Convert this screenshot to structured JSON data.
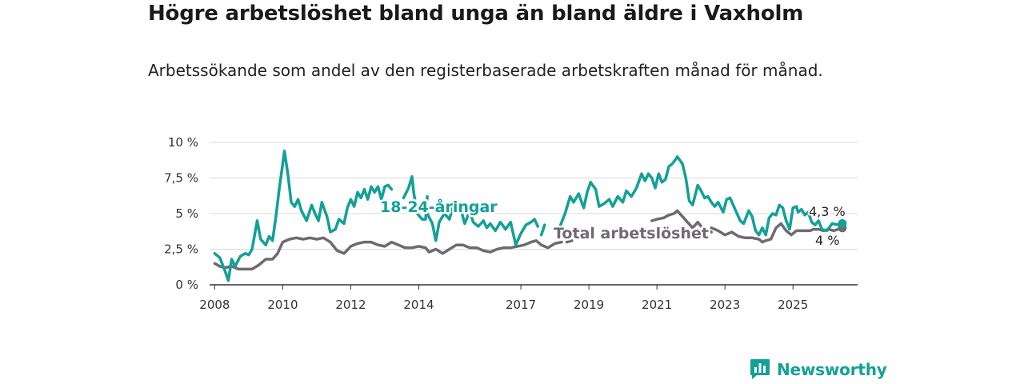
{
  "title": "Högre arbetslöshet bland unga än bland äldre i Vaxholm",
  "subtitle": "Arbetssökande som andel av den registerbaserade arbetskraften månad för månad.",
  "brand": {
    "name": "Newsworthy",
    "logo_icon": "bar-chart-speech-bubble-icon",
    "color": "#13a098"
  },
  "chart_data": {
    "type": "line",
    "ylim": [
      0,
      10
    ],
    "yticks": [
      0,
      2.5,
      5,
      7.5,
      10
    ],
    "ytick_labels": [
      "0 %",
      "2,5 %",
      "5 %",
      "7,5 %",
      "10 %"
    ],
    "xlim": [
      2007.85,
      2026.9
    ],
    "xticks": [
      2008,
      2010,
      2012,
      2014,
      2017,
      2019,
      2021,
      2023,
      2025
    ],
    "xtick_labels": [
      "2008",
      "2010",
      "2012",
      "2014",
      "2017",
      "2019",
      "2021",
      "2023",
      "2025"
    ],
    "grid": true,
    "series": [
      {
        "name": "18-24-åringar",
        "color": "#13a098",
        "end_label": "4,3 %",
        "points": [
          [
            2008.0,
            2.2
          ],
          [
            2008.15,
            1.9
          ],
          [
            2008.3,
            1.0
          ],
          [
            2008.4,
            0.3
          ],
          [
            2008.5,
            1.8
          ],
          [
            2008.6,
            1.3
          ],
          [
            2008.75,
            2.0
          ],
          [
            2008.9,
            2.2
          ],
          [
            2009.0,
            2.1
          ],
          [
            2009.1,
            2.5
          ],
          [
            2009.25,
            4.5
          ],
          [
            2009.35,
            3.2
          ],
          [
            2009.5,
            2.8
          ],
          [
            2009.6,
            3.4
          ],
          [
            2009.7,
            3.1
          ],
          [
            2009.8,
            4.8
          ],
          [
            2009.9,
            6.8
          ],
          [
            2010.0,
            8.5
          ],
          [
            2010.05,
            9.4
          ],
          [
            2010.15,
            7.8
          ],
          [
            2010.25,
            5.8
          ],
          [
            2010.35,
            5.5
          ],
          [
            2010.45,
            6.0
          ],
          [
            2010.55,
            5.2
          ],
          [
            2010.7,
            4.5
          ],
          [
            2010.85,
            5.6
          ],
          [
            2010.95,
            5.0
          ],
          [
            2011.05,
            4.5
          ],
          [
            2011.15,
            5.8
          ],
          [
            2011.3,
            4.8
          ],
          [
            2011.4,
            3.7
          ],
          [
            2011.55,
            3.9
          ],
          [
            2011.65,
            4.6
          ],
          [
            2011.8,
            4.3
          ],
          [
            2011.9,
            5.4
          ],
          [
            2012.0,
            6.0
          ],
          [
            2012.1,
            5.5
          ],
          [
            2012.2,
            6.5
          ],
          [
            2012.3,
            6.1
          ],
          [
            2012.4,
            6.7
          ],
          [
            2012.5,
            6.0
          ],
          [
            2012.6,
            6.9
          ],
          [
            2012.7,
            6.5
          ],
          [
            2012.8,
            6.9
          ],
          [
            2012.9,
            6.0
          ],
          [
            2013.0,
            6.9
          ],
          [
            2013.1,
            7.0
          ],
          [
            2013.2,
            6.7
          ]
        ],
        "points_2": [
          [
            2013.55,
            6.1
          ],
          [
            2013.7,
            6.8
          ],
          [
            2013.8,
            7.6
          ],
          [
            2013.85,
            6.5
          ],
          [
            2013.95,
            5.0
          ],
          [
            2014.1,
            4.6
          ],
          [
            2014.2,
            4.6
          ],
          [
            2014.25,
            6.2
          ]
        ],
        "points_3": [
          [
            2014.25,
            5.0
          ],
          [
            2014.4,
            4.3
          ],
          [
            2014.5,
            3.1
          ],
          [
            2014.6,
            4.4
          ],
          [
            2014.75,
            5.0
          ],
          [
            2014.9,
            4.6
          ],
          [
            2015.0,
            5.5
          ],
          [
            2015.1,
            5.2
          ],
          [
            2015.2,
            5.6
          ],
          [
            2015.35,
            4.3
          ],
          [
            2015.5,
            5.2
          ],
          [
            2015.6,
            4.4
          ],
          [
            2015.75,
            4.1
          ],
          [
            2015.9,
            4.5
          ],
          [
            2016.0,
            4.0
          ],
          [
            2016.1,
            4.3
          ],
          [
            2016.25,
            3.8
          ],
          [
            2016.4,
            4.4
          ],
          [
            2016.55,
            3.9
          ],
          [
            2016.7,
            4.4
          ],
          [
            2016.85,
            2.8
          ],
          [
            2017.0,
            3.6
          ],
          [
            2017.15,
            4.2
          ],
          [
            2017.3,
            4.4
          ],
          [
            2017.4,
            4.6
          ],
          [
            2017.5,
            4.1
          ]
        ],
        "points_4": [
          [
            2017.6,
            3.5
          ],
          [
            2017.7,
            4.2
          ]
        ],
        "points_5": [
          [
            2018.15,
            4.1
          ],
          [
            2018.3,
            5.0
          ],
          [
            2018.45,
            6.2
          ],
          [
            2018.55,
            5.8
          ],
          [
            2018.7,
            6.4
          ],
          [
            2018.85,
            5.4
          ],
          [
            2018.95,
            6.5
          ],
          [
            2019.05,
            7.2
          ],
          [
            2019.2,
            6.7
          ],
          [
            2019.3,
            5.5
          ],
          [
            2019.45,
            5.7
          ],
          [
            2019.6,
            6.0
          ],
          [
            2019.7,
            5.5
          ],
          [
            2019.85,
            6.2
          ],
          [
            2020.0,
            5.8
          ],
          [
            2020.1,
            6.6
          ],
          [
            2020.25,
            6.2
          ],
          [
            2020.4,
            6.8
          ],
          [
            2020.55,
            7.8
          ],
          [
            2020.65,
            7.3
          ],
          [
            2020.75,
            7.8
          ],
          [
            2020.85,
            7.5
          ],
          [
            2020.95,
            6.8
          ],
          [
            2021.05,
            7.8
          ],
          [
            2021.15,
            7.2
          ],
          [
            2021.25,
            7.4
          ],
          [
            2021.35,
            8.3
          ],
          [
            2021.45,
            8.5
          ],
          [
            2021.55,
            8.8
          ],
          [
            2021.6,
            9.0
          ],
          [
            2021.75,
            8.5
          ],
          [
            2021.85,
            7.5
          ],
          [
            2021.95,
            5.9
          ],
          [
            2022.05,
            5.6
          ],
          [
            2022.2,
            7.0
          ],
          [
            2022.3,
            6.6
          ],
          [
            2022.4,
            6.1
          ],
          [
            2022.5,
            6.2
          ],
          [
            2022.6,
            5.8
          ],
          [
            2022.7,
            5.5
          ],
          [
            2022.8,
            5.8
          ],
          [
            2022.95,
            5.1
          ],
          [
            2023.05,
            6.0
          ],
          [
            2023.15,
            6.1
          ],
          [
            2023.3,
            5.3
          ],
          [
            2023.45,
            4.5
          ],
          [
            2023.55,
            4.3
          ],
          [
            2023.7,
            5.2
          ],
          [
            2023.8,
            4.8
          ],
          [
            2023.9,
            3.8
          ],
          [
            2024.0,
            3.5
          ],
          [
            2024.1,
            4.0
          ],
          [
            2024.2,
            3.5
          ],
          [
            2024.3,
            4.7
          ],
          [
            2024.4,
            5.0
          ],
          [
            2024.5,
            4.9
          ],
          [
            2024.6,
            5.6
          ],
          [
            2024.7,
            5.4
          ],
          [
            2024.8,
            4.5
          ],
          [
            2024.9,
            3.9
          ],
          [
            2025.0,
            5.4
          ],
          [
            2025.1,
            5.5
          ],
          [
            2025.15,
            5.1
          ],
          [
            2025.25,
            5.3
          ],
          [
            2025.35,
            4.9
          ],
          [
            2025.45,
            5.1
          ],
          [
            2025.55,
            4.4
          ],
          [
            2025.65,
            4.2
          ],
          [
            2025.75,
            4.5
          ],
          [
            2025.85,
            3.9
          ],
          [
            2026.0,
            3.8
          ],
          [
            2026.15,
            4.3
          ],
          [
            2026.35,
            4.2
          ],
          [
            2026.45,
            4.3
          ]
        ]
      },
      {
        "name": "Total arbetslöshet",
        "color": "#6e6a70",
        "end_label": "4 %",
        "points": [
          [
            2008.0,
            1.5
          ],
          [
            2008.15,
            1.3
          ],
          [
            2008.3,
            1.2
          ],
          [
            2008.5,
            1.3
          ],
          [
            2008.7,
            1.1
          ],
          [
            2008.9,
            1.1
          ],
          [
            2009.1,
            1.1
          ],
          [
            2009.3,
            1.4
          ],
          [
            2009.5,
            1.8
          ],
          [
            2009.7,
            1.8
          ],
          [
            2009.85,
            2.2
          ],
          [
            2010.0,
            3.0
          ],
          [
            2010.2,
            3.2
          ],
          [
            2010.4,
            3.3
          ],
          [
            2010.6,
            3.2
          ],
          [
            2010.8,
            3.3
          ],
          [
            2011.0,
            3.2
          ],
          [
            2011.2,
            3.3
          ],
          [
            2011.4,
            3.0
          ],
          [
            2011.6,
            2.4
          ],
          [
            2011.8,
            2.2
          ],
          [
            2012.0,
            2.7
          ],
          [
            2012.2,
            2.9
          ],
          [
            2012.4,
            3.0
          ],
          [
            2012.6,
            3.0
          ],
          [
            2012.8,
            2.8
          ],
          [
            2013.0,
            2.7
          ],
          [
            2013.2,
            3.0
          ],
          [
            2013.4,
            2.8
          ],
          [
            2013.6,
            2.6
          ],
          [
            2013.8,
            2.6
          ],
          [
            2014.0,
            2.7
          ],
          [
            2014.2,
            2.6
          ],
          [
            2014.3,
            2.3
          ],
          [
            2014.5,
            2.5
          ],
          [
            2014.7,
            2.2
          ],
          [
            2014.9,
            2.5
          ],
          [
            2015.1,
            2.8
          ],
          [
            2015.3,
            2.8
          ],
          [
            2015.5,
            2.6
          ],
          [
            2015.7,
            2.6
          ],
          [
            2015.9,
            2.4
          ],
          [
            2016.1,
            2.3
          ],
          [
            2016.3,
            2.5
          ],
          [
            2016.5,
            2.6
          ],
          [
            2016.7,
            2.6
          ],
          [
            2016.9,
            2.7
          ],
          [
            2017.1,
            2.8
          ],
          [
            2017.3,
            3.0
          ],
          [
            2017.45,
            3.1
          ],
          [
            2017.6,
            2.8
          ],
          [
            2017.8,
            2.6
          ],
          [
            2018.0,
            2.9
          ],
          [
            2018.2,
            3.0
          ]
        ],
        "points_2": [
          [
            2018.35,
            3.0
          ],
          [
            2018.5,
            3.1
          ]
        ],
        "points_3": [
          [
            2020.85,
            4.5
          ],
          [
            2021.0,
            4.6
          ],
          [
            2021.2,
            4.7
          ],
          [
            2021.35,
            4.9
          ],
          [
            2021.5,
            5.0
          ],
          [
            2021.6,
            5.2
          ],
          [
            2021.75,
            4.8
          ],
          [
            2021.9,
            4.4
          ],
          [
            2022.05,
            4.0
          ],
          [
            2022.2,
            4.4
          ],
          [
            2022.3,
            4.1
          ],
          [
            2022.45,
            3.9
          ],
          [
            2022.6,
            3.7
          ]
        ],
        "points_4": [
          [
            2022.6,
            4.0
          ],
          [
            2022.8,
            3.8
          ],
          [
            2023.0,
            3.5
          ],
          [
            2023.2,
            3.7
          ],
          [
            2023.4,
            3.4
          ],
          [
            2023.6,
            3.3
          ],
          [
            2023.8,
            3.3
          ],
          [
            2024.0,
            3.2
          ],
          [
            2024.1,
            3.0
          ],
          [
            2024.2,
            3.1
          ],
          [
            2024.35,
            3.2
          ],
          [
            2024.5,
            4.0
          ],
          [
            2024.65,
            4.3
          ],
          [
            2024.8,
            3.8
          ],
          [
            2024.95,
            3.5
          ],
          [
            2025.1,
            3.8
          ],
          [
            2025.3,
            3.8
          ],
          [
            2025.5,
            3.8
          ],
          [
            2025.6,
            3.9
          ],
          [
            2025.75,
            3.9
          ],
          [
            2025.9,
            3.8
          ],
          [
            2026.05,
            3.9
          ],
          [
            2026.2,
            3.8
          ],
          [
            2026.45,
            4.0
          ]
        ]
      }
    ],
    "annotations": [
      {
        "text": "18-24-åringar",
        "series": "18-24-åringar"
      },
      {
        "text": "Total arbetslöshet",
        "series": "Total arbetslöshet"
      }
    ]
  }
}
